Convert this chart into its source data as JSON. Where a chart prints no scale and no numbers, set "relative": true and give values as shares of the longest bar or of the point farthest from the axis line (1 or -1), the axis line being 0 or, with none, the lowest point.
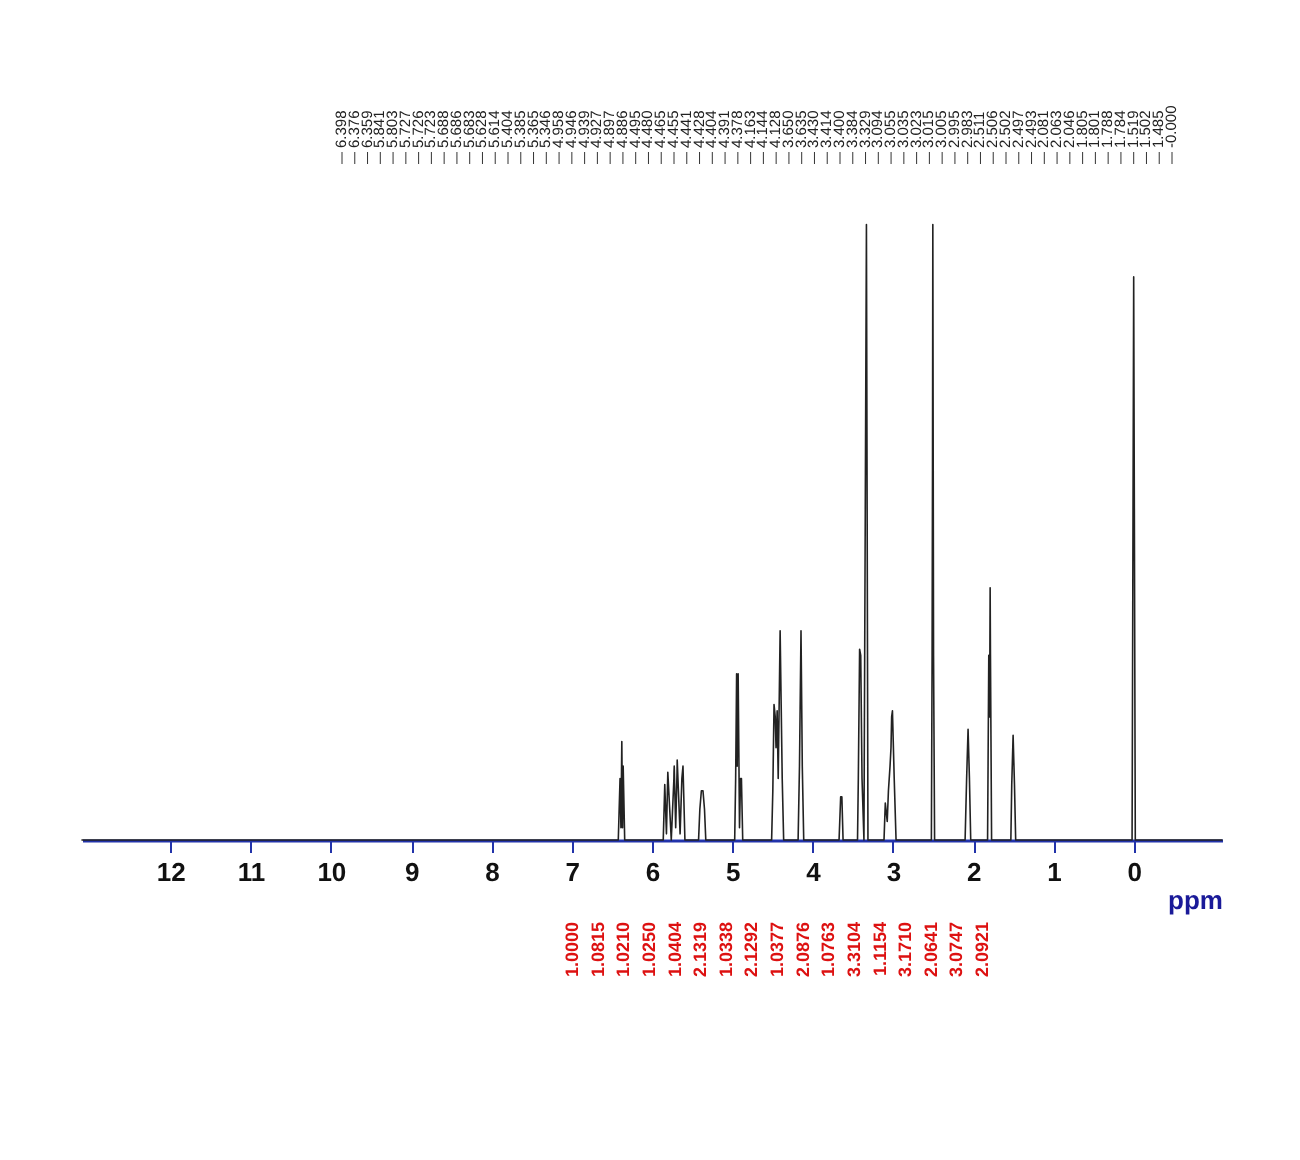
{
  "chart_data": [
    {
      "type": "line",
      "relative": true,
      "xlabel": "ppm",
      "xlim": [
        13.1,
        -1.1
      ],
      "xticks": [
        12,
        11,
        10,
        9,
        8,
        7,
        6,
        5,
        4,
        3,
        2,
        1,
        0
      ],
      "x": [
        13.1,
        6.42,
        6.398,
        6.387,
        6.376,
        6.367,
        6.359,
        6.34,
        5.86,
        5.841,
        5.82,
        5.803,
        5.76,
        5.727,
        5.726,
        5.723,
        5.705,
        5.688,
        5.686,
        5.683,
        5.65,
        5.628,
        5.614,
        5.59,
        5.42,
        5.404,
        5.385,
        5.365,
        5.346,
        5.33,
        4.97,
        4.958,
        4.946,
        4.939,
        4.927,
        4.91,
        4.897,
        4.886,
        4.87,
        4.51,
        4.495,
        4.48,
        4.465,
        4.455,
        4.441,
        4.428,
        4.404,
        4.391,
        4.378,
        4.36,
        4.18,
        4.163,
        4.144,
        4.128,
        4.11,
        3.67,
        3.65,
        3.635,
        3.62,
        3.44,
        3.43,
        3.414,
        3.4,
        3.384,
        3.36,
        3.329,
        3.31,
        3.11,
        3.094,
        3.07,
        3.055,
        3.035,
        3.023,
        3.015,
        3.005,
        2.995,
        2.983,
        2.96,
        2.52,
        2.511,
        2.506,
        2.502,
        2.497,
        2.493,
        2.48,
        2.1,
        2.081,
        2.063,
        2.046,
        2.03,
        1.82,
        1.805,
        1.801,
        1.795,
        1.788,
        1.784,
        1.77,
        1.53,
        1.519,
        1.502,
        1.485,
        1.47,
        0.02,
        0,
        -0.02,
        -1.1
      ],
      "series": [
        {
          "color": "#222222",
          "values": [
            0,
            0,
            0.1,
            0.02,
            0.16,
            0.02,
            0.12,
            0,
            0,
            0.09,
            0.01,
            0.11,
            0,
            0.1,
            0.11,
            0.12,
            0.02,
            0.11,
            0.13,
            0.12,
            0.01,
            0.1,
            0.12,
            0,
            0,
            0.05,
            0.08,
            0.08,
            0.05,
            0,
            0,
            0.1,
            0.27,
            0.12,
            0.27,
            0.02,
            0.1,
            0.1,
            0,
            0,
            0.08,
            0.22,
            0.2,
            0.15,
            0.21,
            0.1,
            0.34,
            0.22,
            0.1,
            0,
            0,
            0.12,
            0.34,
            0.12,
            0,
            0,
            0.07,
            0.07,
            0,
            0,
            0.1,
            0.31,
            0.3,
            0.1,
            0,
            1,
            0,
            0,
            0.06,
            0.03,
            0.08,
            0.12,
            0.15,
            0.2,
            0.21,
            0.16,
            0.1,
            0,
            0,
            0.3,
            0.6,
            1,
            0.6,
            0.3,
            0,
            0,
            0.1,
            0.18,
            0.1,
            0,
            0,
            0.3,
            0.25,
            0.2,
            0.41,
            0.3,
            0,
            0,
            0.09,
            0.17,
            0.09,
            0,
            0,
            0.915,
            0,
            0
          ]
        }
      ],
      "annotations": [
        "6.398",
        "6.376",
        "6.359",
        "5.841",
        "5.803",
        "5.727",
        "5.726",
        "5.723",
        "5.688",
        "5.686",
        "5.683",
        "5.628",
        "5.614",
        "5.404",
        "5.385",
        "5.365",
        "5.346",
        "4.958",
        "4.946",
        "4.939",
        "4.927",
        "4.897",
        "4.886",
        "4.495",
        "4.480",
        "4.465",
        "4.455",
        "4.441",
        "4.428",
        "4.404",
        "4.391",
        "4.378",
        "4.163",
        "4.144",
        "4.128",
        "3.650",
        "3.635",
        "3.430",
        "3.414",
        "3.400",
        "3.384",
        "3.329",
        "3.094",
        "3.055",
        "3.035",
        "3.023",
        "3.015",
        "3.005",
        "2.995",
        "2.983",
        "2.511",
        "2.506",
        "2.502",
        "2.497",
        "2.493",
        "2.081",
        "2.063",
        "2.046",
        "1.805",
        "1.801",
        "1.788",
        "1.784",
        "1.519",
        "1.502",
        "1.485",
        "-0.000"
      ]
    },
    {
      "type": "other",
      "annotations": [
        "1.0000",
        "1.0815",
        "1.0210",
        "1.0250",
        "1.0404",
        "2.1319",
        "1.0338",
        "2.1292",
        "1.0377",
        "2.0876",
        "1.0763",
        "3.3104",
        "1.1154",
        "3.1710",
        "2.0641",
        "3.0747",
        "2.0921"
      ]
    }
  ]
}
